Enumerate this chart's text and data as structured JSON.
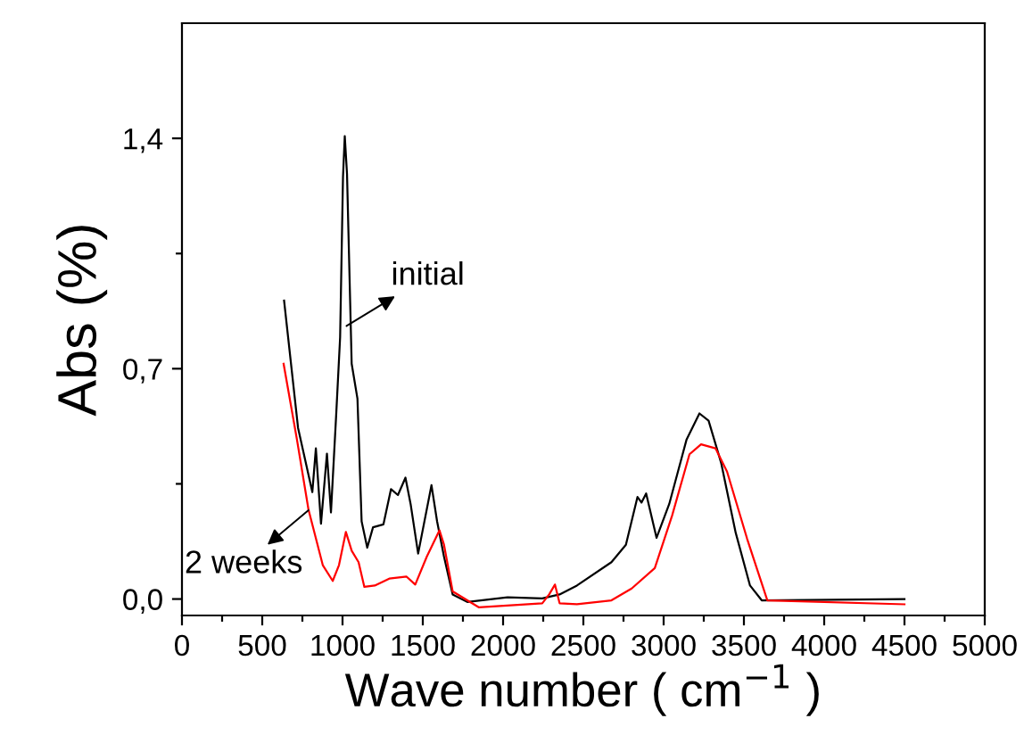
{
  "chart_data": {
    "type": "line",
    "xlabel": "Wave number ( cm$^{−1}$ )",
    "ylabel": "Abs (%)",
    "series": [
      {
        "color": "#000000",
        "x": [
          636,
          723,
          812,
          834,
          866,
          903,
          928,
          960,
          985,
          1003,
          1014,
          1028,
          1057,
          1093,
          1119,
          1154,
          1190,
          1255,
          1302,
          1345,
          1392,
          1424,
          1471,
          1554,
          1589,
          1632,
          1686,
          1777,
          2028,
          2244,
          2352,
          2460,
          2675,
          2765,
          2837,
          2862,
          2891,
          2956,
          3035,
          3143,
          3223,
          3280,
          3358,
          3449,
          3538,
          3611,
          4500
        ],
        "values": [
          0.907,
          0.52,
          0.325,
          0.458,
          0.229,
          0.442,
          0.263,
          0.555,
          0.795,
          1.283,
          1.407,
          1.292,
          0.715,
          0.609,
          0.236,
          0.156,
          0.218,
          0.227,
          0.334,
          0.316,
          0.369,
          0.289,
          0.138,
          0.346,
          0.236,
          0.129,
          0.014,
          -0.009,
          0.005,
          0.002,
          0.014,
          0.041,
          0.112,
          0.165,
          0.31,
          0.293,
          0.321,
          0.186,
          0.289,
          0.485,
          0.564,
          0.542,
          0.414,
          0.201,
          0.041,
          -0.004,
          0.0
        ]
      },
      {
        "color": "#ff0000",
        "x": [
          633,
          716,
          788,
          877,
          939,
          978,
          1021,
          1057,
          1100,
          1136,
          1201,
          1291,
          1399,
          1453,
          1525,
          1604,
          1632,
          1686,
          1848,
          2244,
          2287,
          2323,
          2352,
          2460,
          2675,
          2801,
          2945,
          3053,
          3161,
          3233,
          3323,
          3395,
          3520,
          3646,
          4500
        ],
        "values": [
          0.715,
          0.485,
          0.272,
          0.103,
          0.055,
          0.103,
          0.204,
          0.147,
          0.112,
          0.037,
          0.041,
          0.062,
          0.068,
          0.044,
          0.129,
          0.209,
          0.165,
          0.023,
          -0.025,
          -0.013,
          0.014,
          0.044,
          -0.013,
          -0.016,
          -0.004,
          0.032,
          0.094,
          0.254,
          0.44,
          0.47,
          0.458,
          0.387,
          0.183,
          -0.004,
          -0.016
        ]
      }
    ],
    "annotations": [
      {
        "text": "initial",
        "x": 1025,
        "y": 0.83
      },
      {
        "text": "2 weeks",
        "x": 788,
        "y": 0.27
      }
    ],
    "xlim": [
      0,
      5000
    ],
    "ylim": [
      -0.05,
      1.75
    ],
    "xticks": [
      0,
      {
        "value": 250,
        "label": null
      },
      500,
      {
        "value": 750,
        "label": null
      },
      1000,
      {
        "value": 1250,
        "label": null
      },
      1500,
      {
        "value": 1750,
        "label": null
      },
      2000,
      {
        "value": 2250,
        "label": null
      },
      2500,
      {
        "value": 2750,
        "label": null
      },
      3000,
      {
        "value": 3250,
        "label": null
      },
      3500,
      {
        "value": 3750,
        "label": null
      },
      4000,
      {
        "value": 4250,
        "label": null
      },
      4500,
      {
        "value": 4750,
        "label": null
      },
      5000
    ],
    "yticks": [
      {
        "value": 0,
        "label": "0,0"
      },
      {
        "value": 0.35,
        "label": null
      },
      {
        "value": 0.7,
        "label": "0,7"
      },
      {
        "value": 1.05,
        "label": null
      },
      {
        "value": 1.4,
        "label": "1,4"
      }
    ],
    "grid": false,
    "legend": false,
    "marker": "none",
    "line_style": "solid"
  }
}
